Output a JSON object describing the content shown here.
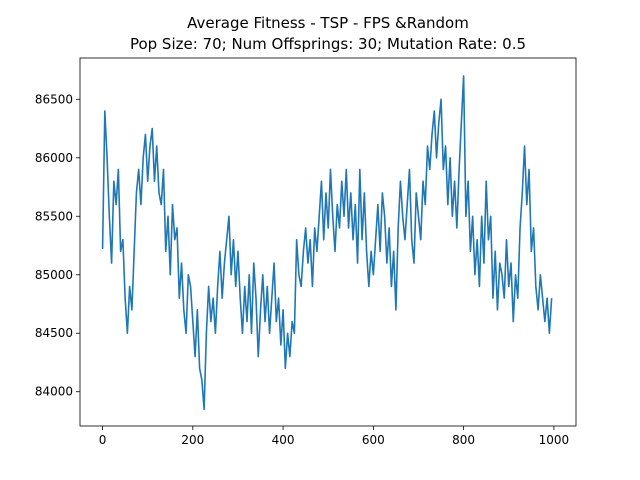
{
  "chart_data": {
    "type": "line",
    "title": "Average Fitness - TSP - FPS &Random",
    "subtitle": "Pop Size: 70; Num Offsprings: 30; Mutation Rate: 0.5",
    "x": [
      0,
      5,
      10,
      15,
      20,
      25,
      30,
      35,
      40,
      45,
      50,
      55,
      60,
      65,
      70,
      75,
      80,
      85,
      90,
      95,
      100,
      105,
      110,
      115,
      120,
      125,
      130,
      135,
      140,
      145,
      150,
      155,
      160,
      165,
      170,
      175,
      180,
      185,
      190,
      195,
      200,
      205,
      210,
      215,
      220,
      225,
      230,
      235,
      240,
      245,
      250,
      255,
      260,
      265,
      270,
      275,
      280,
      285,
      290,
      295,
      300,
      305,
      310,
      315,
      320,
      325,
      330,
      335,
      340,
      345,
      350,
      355,
      360,
      365,
      370,
      375,
      380,
      385,
      390,
      395,
      400,
      405,
      410,
      415,
      420,
      425,
      430,
      435,
      440,
      445,
      450,
      455,
      460,
      465,
      470,
      475,
      480,
      485,
      490,
      495,
      500,
      505,
      510,
      515,
      520,
      525,
      530,
      535,
      540,
      545,
      550,
      555,
      560,
      565,
      570,
      575,
      580,
      585,
      590,
      595,
      600,
      605,
      610,
      615,
      620,
      625,
      630,
      635,
      640,
      645,
      650,
      655,
      660,
      665,
      670,
      675,
      680,
      685,
      690,
      695,
      700,
      705,
      710,
      715,
      720,
      725,
      730,
      735,
      740,
      745,
      750,
      755,
      760,
      765,
      770,
      775,
      780,
      785,
      790,
      795,
      800,
      805,
      810,
      815,
      820,
      825,
      830,
      835,
      840,
      845,
      850,
      855,
      860,
      865,
      870,
      875,
      880,
      885,
      890,
      895,
      900,
      905,
      910,
      915,
      920,
      925,
      930,
      935,
      940,
      945,
      950,
      955,
      960,
      965,
      970,
      975,
      980,
      985,
      990,
      995
    ],
    "series": [
      {
        "color": "#1f77b4",
        "values": [
          85220,
          86400,
          86000,
          85500,
          85100,
          85800,
          85600,
          85900,
          85200,
          85300,
          84800,
          84500,
          84900,
          84700,
          85200,
          85700,
          85900,
          85600,
          86000,
          86200,
          85800,
          86100,
          86250,
          85800,
          86100,
          85700,
          85600,
          85900,
          85200,
          85500,
          85000,
          85600,
          85300,
          85400,
          84800,
          85100,
          84700,
          84500,
          85000,
          84900,
          84600,
          84300,
          84700,
          84200,
          84100,
          83850,
          84500,
          84900,
          84600,
          84800,
          84500,
          84900,
          85200,
          84800,
          85100,
          85300,
          85500,
          85000,
          85300,
          84900,
          85200,
          84800,
          84500,
          84900,
          84600,
          85000,
          84500,
          85100,
          84800,
          84300,
          84700,
          85000,
          84600,
          84900,
          84500,
          84800,
          85100,
          84600,
          84800,
          84400,
          84700,
          84200,
          84500,
          84300,
          84600,
          84500,
          85300,
          85000,
          84900,
          85200,
          85400,
          85100,
          85300,
          84900,
          85400,
          85200,
          85500,
          85800,
          85300,
          85700,
          85400,
          85900,
          85500,
          85200,
          85600,
          85400,
          85800,
          85500,
          85900,
          85400,
          85700,
          85300,
          85600,
          85100,
          85900,
          85300,
          85700,
          85200,
          84900,
          85200,
          85000,
          85300,
          85600,
          85200,
          85700,
          85500,
          85100,
          85400,
          84900,
          85200,
          84700,
          85400,
          85800,
          85500,
          85300,
          85600,
          85900,
          85300,
          85100,
          85700,
          85500,
          85300,
          85800,
          85600,
          86100,
          85900,
          86200,
          86400,
          86000,
          86300,
          86500,
          85900,
          86100,
          85600,
          86000,
          85500,
          85800,
          85400,
          85900,
          86300,
          86700,
          85500,
          85800,
          85200,
          85500,
          85000,
          85300,
          84900,
          85500,
          85100,
          85800,
          85300,
          85500,
          84800,
          85200,
          84700,
          85100,
          85000,
          84800,
          85300,
          84900,
          85100,
          84600,
          85000,
          84800,
          85400,
          85700,
          86100,
          85600,
          85900,
          85200,
          85400,
          84900,
          84700,
          85000,
          84800,
          84600,
          84800,
          84500,
          84800
        ]
      }
    ],
    "xlim": [
      -50,
      1049
    ],
    "xticks": [
      0,
      200,
      400,
      600,
      800,
      1000
    ],
    "ylim": [
      83707,
      86853
    ],
    "yticks": [
      84000,
      84500,
      85000,
      85500,
      86000,
      86500
    ]
  }
}
